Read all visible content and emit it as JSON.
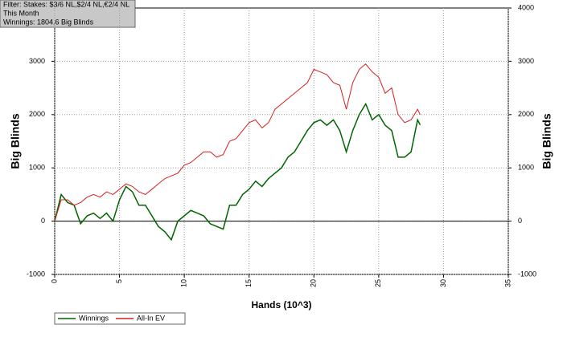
{
  "chart_data": {
    "type": "line",
    "annotation_lines": [
      "Filter: Stakes: $3/6 NL,$2/4 NL,€2/4 NL",
      "This Month",
      "Winnings: 1804.6 Big Blinds"
    ],
    "xlabel": "Hands (10^3)",
    "ylabel": "Big Blinds",
    "y2label": "Big Blinds",
    "x": [
      0,
      0.5,
      1,
      1.5,
      2,
      2.5,
      3,
      3.5,
      4,
      4.5,
      5,
      5.5,
      6,
      6.5,
      7,
      7.5,
      8,
      8.5,
      9,
      9.5,
      10,
      10.5,
      11,
      11.5,
      12,
      12.5,
      13,
      13.5,
      14,
      14.5,
      15,
      15.5,
      16,
      16.5,
      17,
      17.5,
      18,
      18.5,
      19,
      19.5,
      20,
      20.5,
      21,
      21.5,
      22,
      22.5,
      23,
      23.5,
      24,
      24.5,
      25,
      25.5,
      26,
      26.5,
      27,
      27.5,
      28,
      28.2
    ],
    "series": [
      {
        "name": "Winnings",
        "color": "#006400",
        "values": [
          0,
          500,
          350,
          300,
          -50,
          100,
          150,
          50,
          150,
          0,
          400,
          650,
          550,
          300,
          300,
          100,
          -100,
          -200,
          -350,
          0,
          100,
          200,
          150,
          100,
          -50,
          -100,
          -150,
          300,
          300,
          500,
          600,
          750,
          650,
          800,
          900,
          1000,
          1200,
          1300,
          1500,
          1700,
          1850,
          1900,
          1800,
          1900,
          1700,
          1300,
          1700,
          2000,
          2200,
          1900,
          2000,
          1800,
          1700,
          1200,
          1200,
          1300,
          1900,
          1805
        ]
      },
      {
        "name": "All-In EV",
        "color": "#d42020",
        "values": [
          0,
          400,
          400,
          300,
          350,
          450,
          500,
          450,
          550,
          500,
          600,
          700,
          650,
          550,
          500,
          600,
          700,
          800,
          850,
          900,
          1050,
          1100,
          1200,
          1300,
          1300,
          1200,
          1250,
          1500,
          1550,
          1700,
          1850,
          1900,
          1750,
          1850,
          2100,
          2200,
          2300,
          2400,
          2500,
          2600,
          2850,
          2800,
          2750,
          2600,
          2550,
          2100,
          2600,
          2850,
          2950,
          2800,
          2700,
          2400,
          2500,
          2000,
          1850,
          1900,
          2100,
          2000
        ]
      }
    ],
    "xlim": [
      0,
      35
    ],
    "xticks": [
      0,
      5,
      10,
      15,
      20,
      25,
      30,
      35
    ],
    "ylim": [
      -1000,
      4000
    ],
    "yticks": [
      -1000,
      0,
      1000,
      2000,
      3000
    ],
    "y2lim": [
      -1000,
      4000
    ],
    "y2ticks": [
      -1000,
      0,
      1000,
      2000,
      3000,
      4000
    ],
    "grid": true
  }
}
